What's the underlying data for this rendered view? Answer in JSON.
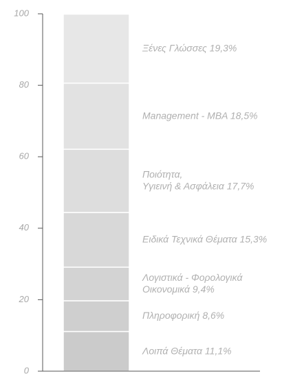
{
  "chart_data": {
    "type": "stacked_bar",
    "series": [
      {
        "name": [
          "Λοιπά Θέματα"
        ],
        "values": [
          11.1
        ],
        "value_labels": [
          "11,1%"
        ],
        "color": "#cbcbcb"
      },
      {
        "name": [
          "Πληροφορική"
        ],
        "values": [
          8.6
        ],
        "value_labels": [
          "8,6%"
        ],
        "color": "#cfcfcf"
      },
      {
        "name": [
          "Λογιστικά - Φορολογικά",
          "Οικονομικά"
        ],
        "values": [
          9.4
        ],
        "value_labels": [
          "9,4%"
        ],
        "color": "#d3d3d3"
      },
      {
        "name": [
          "Ειδικά Τεχνικά Θέματα"
        ],
        "values": [
          15.3
        ],
        "value_labels": [
          "15,3%"
        ],
        "color": "#d8d8d8"
      },
      {
        "name": [
          "Ποιότητα,",
          "Υγιεινή & Ασφάλεια"
        ],
        "values": [
          17.7
        ],
        "value_labels": [
          "17,7%"
        ],
        "color": "#dddddd"
      },
      {
        "name": [
          "Management - MBA"
        ],
        "values": [
          18.5
        ],
        "value_labels": [
          "18,5%"
        ],
        "color": "#e2e2e2"
      },
      {
        "name": [
          "Ξένες Γλώσσες"
        ],
        "values": [
          19.3
        ],
        "value_labels": [
          "19,3%"
        ],
        "color": "#e7e7e7"
      }
    ],
    "ylim": [
      0,
      100
    ],
    "yticks": [
      0,
      20,
      40,
      60,
      80,
      100
    ]
  }
}
